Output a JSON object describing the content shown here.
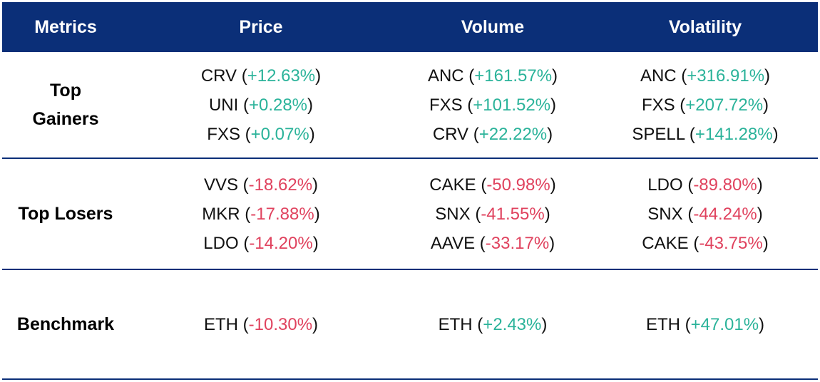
{
  "header": {
    "metrics": "Metrics",
    "price": "Price",
    "volume": "Volume",
    "volatility": "Volatility"
  },
  "rows": [
    {
      "label_lines": [
        "Top",
        "Gainers"
      ],
      "price": [
        {
          "ticker": "CRV",
          "change": "+12.63%",
          "sign": "pos"
        },
        {
          "ticker": "UNI",
          "change": "+0.28%",
          "sign": "pos"
        },
        {
          "ticker": "FXS",
          "change": "+0.07%",
          "sign": "pos"
        }
      ],
      "volume": [
        {
          "ticker": "ANC",
          "change": "+161.57%",
          "sign": "pos"
        },
        {
          "ticker": "FXS",
          "change": "+101.52%",
          "sign": "pos"
        },
        {
          "ticker": "CRV",
          "change": "+22.22%",
          "sign": "pos"
        }
      ],
      "volatility": [
        {
          "ticker": "ANC",
          "change": "+316.91%",
          "sign": "pos"
        },
        {
          "ticker": "FXS",
          "change": "+207.72%",
          "sign": "pos"
        },
        {
          "ticker": "SPELL",
          "change": "+141.28%",
          "sign": "pos"
        }
      ]
    },
    {
      "label_lines": [
        "Top Losers"
      ],
      "price": [
        {
          "ticker": "VVS",
          "change": "-18.62%",
          "sign": "neg"
        },
        {
          "ticker": "MKR",
          "change": "-17.88%",
          "sign": "neg"
        },
        {
          "ticker": "LDO",
          "change": "-14.20%",
          "sign": "neg"
        }
      ],
      "volume": [
        {
          "ticker": "CAKE",
          "change": "-50.98%",
          "sign": "neg"
        },
        {
          "ticker": "SNX",
          "change": "-41.55%",
          "sign": "neg"
        },
        {
          "ticker": "AAVE",
          "change": "-33.17%",
          "sign": "neg"
        }
      ],
      "volatility": [
        {
          "ticker": "LDO",
          "change": "-89.80%",
          "sign": "neg"
        },
        {
          "ticker": "SNX",
          "change": "-44.24%",
          "sign": "neg"
        },
        {
          "ticker": "CAKE",
          "change": "-43.75%",
          "sign": "neg"
        }
      ]
    },
    {
      "label_lines": [
        "Benchmark"
      ],
      "price": [
        {
          "ticker": "ETH",
          "change": "-10.30%",
          "sign": "neg"
        }
      ],
      "volume": [
        {
          "ticker": "ETH",
          "change": "+2.43%",
          "sign": "pos"
        }
      ],
      "volatility": [
        {
          "ticker": "ETH",
          "change": "+47.01%",
          "sign": "pos"
        }
      ]
    }
  ],
  "colors": {
    "header_bg": "#0b2f78",
    "positive": "#2bb39a",
    "negative": "#e0425e"
  }
}
